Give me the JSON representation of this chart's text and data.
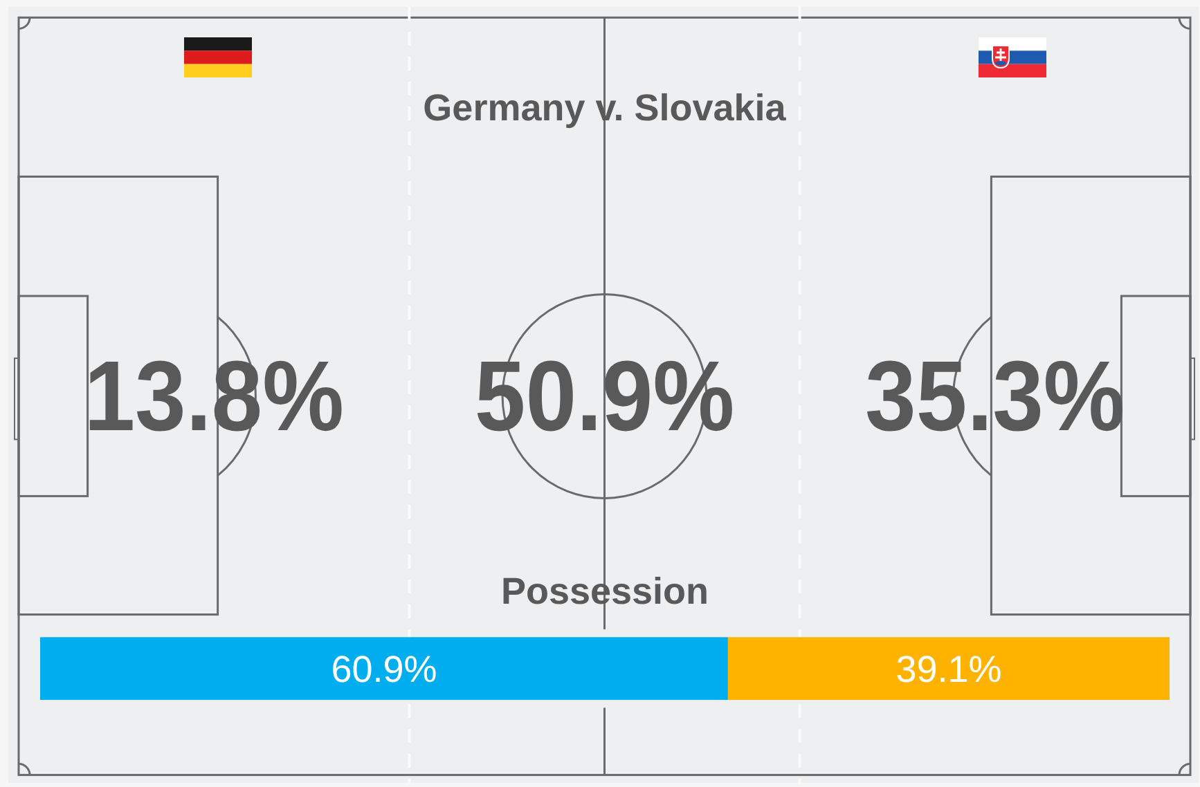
{
  "chart_data": [
    {
      "type": "other",
      "title": "Germany v. Slovakia",
      "categories": [
        null,
        null,
        null
      ],
      "values": [
        13.8,
        50.9,
        35.3
      ],
      "value_labels": [
        "13.8%",
        "50.9%",
        "35.3%"
      ]
    },
    {
      "type": "bar",
      "title": "Possession",
      "orientation": "horizontal",
      "stacked": true,
      "categories": [
        null
      ],
      "series": [
        {
          "color": "#00aeef",
          "values": [
            60.9
          ],
          "value_labels": [
            "60.9%"
          ]
        },
        {
          "color": "#ffb300",
          "values": [
            39.1
          ],
          "value_labels": [
            "39.1%"
          ]
        }
      ],
      "xlim": [
        0,
        100
      ]
    }
  ]
}
